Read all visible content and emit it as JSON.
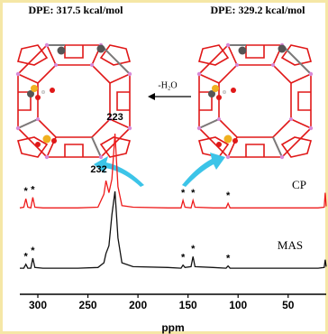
{
  "chart_data": {
    "type": "line",
    "labels": {
      "left_energy": "DPE: 317.5 kcal/mol",
      "right_energy": "DPE: 329.2 kcal/mol",
      "reaction": "-H₂O"
    },
    "xlabel": "ppm",
    "xlim": [
      318,
      12
    ],
    "xticks": [
      300,
      250,
      200,
      150,
      100,
      50
    ],
    "ylim": [
      0,
      100
    ],
    "x": [
      318,
      314,
      312,
      310,
      307,
      305,
      303,
      295,
      260,
      240,
      234,
      232,
      229,
      226,
      223,
      220,
      216,
      205,
      170,
      157,
      155,
      153,
      147,
      145,
      143,
      125,
      112,
      110,
      108,
      60,
      20,
      14,
      13,
      12
    ],
    "series": [
      {
        "name": "CP",
        "color": "#ee1c1c",
        "values": [
          2,
          3,
          14,
          3,
          2,
          16,
          3,
          2,
          2,
          3,
          20,
          38,
          22,
          40,
          100,
          30,
          5,
          3,
          2,
          2,
          12,
          3,
          2,
          12,
          3,
          2,
          2,
          8,
          2,
          2,
          2,
          3,
          22,
          4
        ]
      },
      {
        "name": "MAS",
        "color": "#111111",
        "values": [
          1,
          1,
          6,
          1,
          1,
          14,
          2,
          1,
          1,
          2,
          8,
          20,
          30,
          70,
          100,
          40,
          8,
          3,
          2,
          1,
          5,
          2,
          3,
          16,
          3,
          2,
          1,
          4,
          1,
          1,
          1,
          2,
          12,
          3
        ]
      }
    ],
    "annotations": [
      {
        "text": "223",
        "x": 223,
        "series": 0
      },
      {
        "text": "232",
        "x": 232,
        "series": 0
      },
      {
        "text": "*",
        "x": 312,
        "series": 0
      },
      {
        "text": "*",
        "x": 305,
        "series": 0
      },
      {
        "text": "*",
        "x": 155,
        "series": 0
      },
      {
        "text": "*",
        "x": 145,
        "series": 0
      },
      {
        "text": "*",
        "x": 110,
        "series": 0
      },
      {
        "text": "*",
        "x": 312,
        "series": 1
      },
      {
        "text": "*",
        "x": 305,
        "series": 1
      },
      {
        "text": "*",
        "x": 155,
        "series": 1
      },
      {
        "text": "*",
        "x": 145,
        "series": 1
      },
      {
        "text": "*",
        "x": 110,
        "series": 1
      }
    ]
  }
}
